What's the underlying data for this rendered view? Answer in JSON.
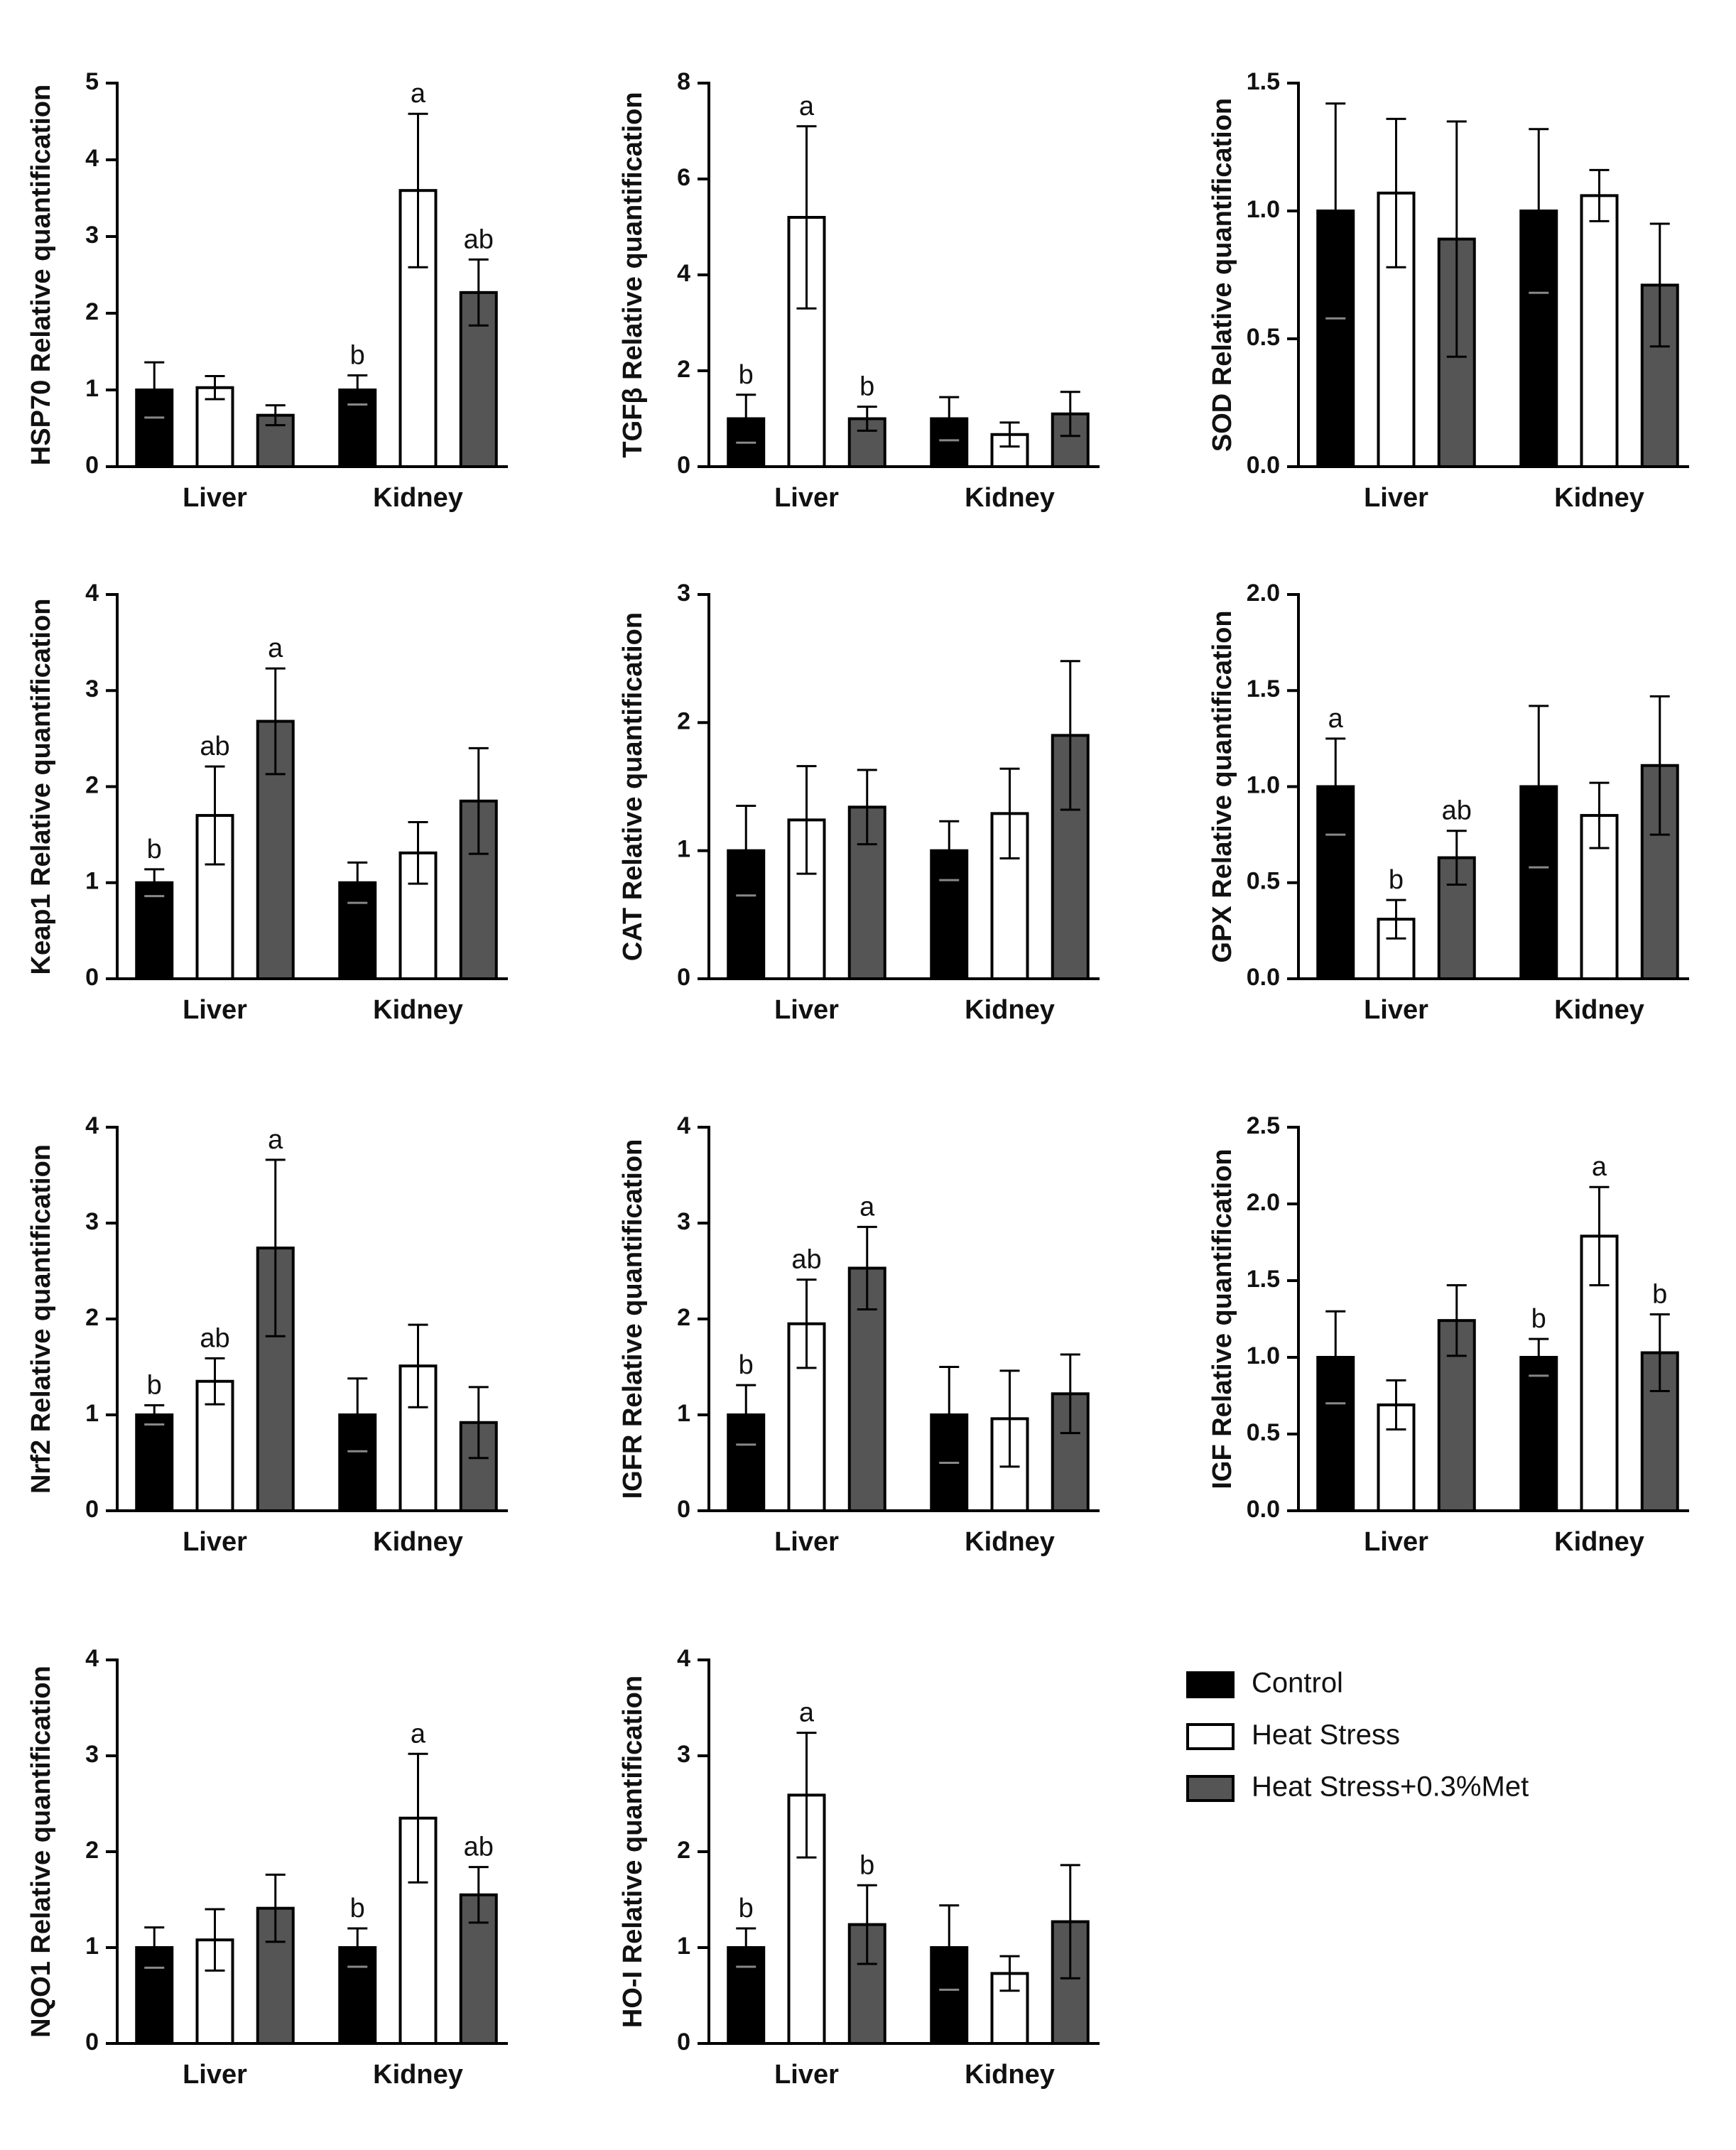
{
  "colors": {
    "control": "#000000",
    "heat_stress": "#ffffff",
    "heat_stress_met": "#555555",
    "axis": "#000000"
  },
  "legend": [
    {
      "label": "Control",
      "color": "#000000"
    },
    {
      "label": "Heat Stress",
      "color": "#ffffff"
    },
    {
      "label": "Heat Stress+0.3%Met",
      "color": "#555555"
    }
  ],
  "chart_data": [
    {
      "type": "bar",
      "ylabel": "HSP70 Relative quantification",
      "categories": [
        "Liver",
        "Kidney"
      ],
      "ylim": [
        0,
        5
      ],
      "yticks": [
        "0",
        "1",
        "2",
        "3",
        "4",
        "5"
      ],
      "series": [
        {
          "name": "Control",
          "values": [
            1.0,
            1.0
          ],
          "errors": [
            0.36,
            0.19
          ],
          "labels": [
            "",
            "b"
          ]
        },
        {
          "name": "Heat Stress",
          "values": [
            1.03,
            3.6
          ],
          "errors": [
            0.15,
            1.0
          ],
          "labels": [
            "",
            "a"
          ]
        },
        {
          "name": "Heat Stress+0.3%Met",
          "values": [
            0.67,
            2.27
          ],
          "errors": [
            0.13,
            0.43
          ],
          "labels": [
            "",
            "ab"
          ]
        }
      ]
    },
    {
      "type": "bar",
      "ylabel": "TGFβ Relative quantification",
      "categories": [
        "Liver",
        "Kidney"
      ],
      "ylim": [
        0,
        8
      ],
      "yticks": [
        "0",
        "2",
        "4",
        "6",
        "8"
      ],
      "series": [
        {
          "name": "Control",
          "values": [
            1.0,
            1.0
          ],
          "errors": [
            0.5,
            0.45
          ],
          "labels": [
            "b",
            ""
          ]
        },
        {
          "name": "Heat Stress",
          "values": [
            5.2,
            0.67
          ],
          "errors": [
            1.9,
            0.25
          ],
          "labels": [
            "a",
            ""
          ]
        },
        {
          "name": "Heat Stress+0.3%Met",
          "values": [
            1.0,
            1.1
          ],
          "errors": [
            0.25,
            0.46
          ],
          "labels": [
            "b",
            ""
          ]
        }
      ]
    },
    {
      "type": "bar",
      "ylabel": "SOD Relative quantification",
      "categories": [
        "Liver",
        "Kidney"
      ],
      "ylim": [
        0,
        1.5
      ],
      "yticks": [
        "0.0",
        "0.5",
        "1.0",
        "1.5"
      ],
      "series": [
        {
          "name": "Control",
          "values": [
            1.0,
            1.0
          ],
          "errors": [
            0.42,
            0.32
          ],
          "labels": [
            "",
            ""
          ]
        },
        {
          "name": "Heat Stress",
          "values": [
            1.07,
            1.06
          ],
          "errors": [
            0.29,
            0.1
          ],
          "labels": [
            "",
            ""
          ]
        },
        {
          "name": "Heat Stress+0.3%Met",
          "values": [
            0.89,
            0.71
          ],
          "errors": [
            0.46,
            0.24
          ],
          "labels": [
            "",
            ""
          ]
        }
      ]
    },
    {
      "type": "bar",
      "ylabel": "Keap1 Relative quantification",
      "categories": [
        "Liver",
        "Kidney"
      ],
      "ylim": [
        0,
        4
      ],
      "yticks": [
        "0",
        "1",
        "2",
        "3",
        "4"
      ],
      "series": [
        {
          "name": "Control",
          "values": [
            1.0,
            1.0
          ],
          "errors": [
            0.14,
            0.21
          ],
          "labels": [
            "b",
            ""
          ]
        },
        {
          "name": "Heat Stress",
          "values": [
            1.7,
            1.31
          ],
          "errors": [
            0.51,
            0.32
          ],
          "labels": [
            "ab",
            ""
          ]
        },
        {
          "name": "Heat Stress+0.3%Met",
          "values": [
            2.68,
            1.85
          ],
          "errors": [
            0.55,
            0.55
          ],
          "labels": [
            "a",
            ""
          ]
        }
      ]
    },
    {
      "type": "bar",
      "ylabel": "CAT Relative quantification",
      "categories": [
        "Liver",
        "Kidney"
      ],
      "ylim": [
        0,
        3
      ],
      "yticks": [
        "0",
        "1",
        "2",
        "3"
      ],
      "series": [
        {
          "name": "Control",
          "values": [
            1.0,
            1.0
          ],
          "errors": [
            0.35,
            0.23
          ],
          "labels": [
            "",
            ""
          ]
        },
        {
          "name": "Heat Stress",
          "values": [
            1.24,
            1.29
          ],
          "errors": [
            0.42,
            0.35
          ],
          "labels": [
            "",
            ""
          ]
        },
        {
          "name": "Heat Stress+0.3%Met",
          "values": [
            1.34,
            1.9
          ],
          "errors": [
            0.29,
            0.58
          ],
          "labels": [
            "",
            ""
          ]
        }
      ]
    },
    {
      "type": "bar",
      "ylabel": "GPX Relative quantification",
      "categories": [
        "Liver",
        "Kidney"
      ],
      "ylim": [
        0,
        2
      ],
      "yticks": [
        "0.0",
        "0.5",
        "1.0",
        "1.5",
        "2.0"
      ],
      "series": [
        {
          "name": "Control",
          "values": [
            1.0,
            1.0
          ],
          "errors": [
            0.25,
            0.42
          ],
          "labels": [
            "a",
            ""
          ]
        },
        {
          "name": "Heat Stress",
          "values": [
            0.31,
            0.85
          ],
          "errors": [
            0.1,
            0.17
          ],
          "labels": [
            "b",
            ""
          ]
        },
        {
          "name": "Heat Stress+0.3%Met",
          "values": [
            0.63,
            1.11
          ],
          "errors": [
            0.14,
            0.36
          ],
          "labels": [
            "ab",
            ""
          ]
        }
      ]
    },
    {
      "type": "bar",
      "ylabel": "Nrf2 Relative quantification",
      "categories": [
        "Liver",
        "Kidney"
      ],
      "ylim": [
        0,
        4
      ],
      "yticks": [
        "0",
        "1",
        "2",
        "3",
        "4"
      ],
      "series": [
        {
          "name": "Control",
          "values": [
            1.0,
            1.0
          ],
          "errors": [
            0.1,
            0.38
          ],
          "labels": [
            "b",
            ""
          ]
        },
        {
          "name": "Heat Stress",
          "values": [
            1.35,
            1.51
          ],
          "errors": [
            0.24,
            0.43
          ],
          "labels": [
            "ab",
            ""
          ]
        },
        {
          "name": "Heat Stress+0.3%Met",
          "values": [
            2.74,
            0.92
          ],
          "errors": [
            0.92,
            0.37
          ],
          "labels": [
            "a",
            ""
          ]
        }
      ]
    },
    {
      "type": "bar",
      "ylabel": "IGFR Relative quantification",
      "categories": [
        "Liver",
        "Kidney"
      ],
      "ylim": [
        0,
        4
      ],
      "yticks": [
        "0",
        "1",
        "2",
        "3",
        "4"
      ],
      "series": [
        {
          "name": "Control",
          "values": [
            1.0,
            1.0
          ],
          "errors": [
            0.31,
            0.5
          ],
          "labels": [
            "b",
            ""
          ]
        },
        {
          "name": "Heat Stress",
          "values": [
            1.95,
            0.96
          ],
          "errors": [
            0.46,
            0.5
          ],
          "labels": [
            "ab",
            ""
          ]
        },
        {
          "name": "Heat Stress+0.3%Met",
          "values": [
            2.53,
            1.22
          ],
          "errors": [
            0.43,
            0.41
          ],
          "labels": [
            "a",
            ""
          ]
        }
      ]
    },
    {
      "type": "bar",
      "ylabel": "IGF Relative quantification",
      "categories": [
        "Liver",
        "Kidney"
      ],
      "ylim": [
        0,
        2.5
      ],
      "yticks": [
        "0.0",
        "0.5",
        "1.0",
        "1.5",
        "2.0",
        "2.5"
      ],
      "series": [
        {
          "name": "Control",
          "values": [
            1.0,
            1.0
          ],
          "errors": [
            0.3,
            0.12
          ],
          "labels": [
            "",
            "b"
          ]
        },
        {
          "name": "Heat Stress",
          "values": [
            0.69,
            1.79
          ],
          "errors": [
            0.16,
            0.32
          ],
          "labels": [
            "",
            "a"
          ]
        },
        {
          "name": "Heat Stress+0.3%Met",
          "values": [
            1.24,
            1.03
          ],
          "errors": [
            0.23,
            0.25
          ],
          "labels": [
            "",
            "b"
          ]
        }
      ]
    },
    {
      "type": "bar",
      "ylabel": "NQO1 Relative quantification",
      "categories": [
        "Liver",
        "Kidney"
      ],
      "ylim": [
        0,
        4
      ],
      "yticks": [
        "0",
        "1",
        "2",
        "3",
        "4"
      ],
      "series": [
        {
          "name": "Control",
          "values": [
            1.0,
            1.0
          ],
          "errors": [
            0.21,
            0.2
          ],
          "labels": [
            "",
            "b"
          ]
        },
        {
          "name": "Heat Stress",
          "values": [
            1.08,
            2.35
          ],
          "errors": [
            0.32,
            0.67
          ],
          "labels": [
            "",
            "a"
          ]
        },
        {
          "name": "Heat Stress+0.3%Met",
          "values": [
            1.41,
            1.55
          ],
          "errors": [
            0.35,
            0.29
          ],
          "labels": [
            "",
            "ab"
          ]
        }
      ]
    },
    {
      "type": "bar",
      "ylabel": "HO-I Relative quantification",
      "categories": [
        "Liver",
        "Kidney"
      ],
      "ylim": [
        0,
        4
      ],
      "yticks": [
        "0",
        "1",
        "2",
        "3",
        "4"
      ],
      "series": [
        {
          "name": "Control",
          "values": [
            1.0,
            1.0
          ],
          "errors": [
            0.2,
            0.44
          ],
          "labels": [
            "b",
            ""
          ]
        },
        {
          "name": "Heat Stress",
          "values": [
            2.59,
            0.73
          ],
          "errors": [
            0.65,
            0.18
          ],
          "labels": [
            "a",
            ""
          ]
        },
        {
          "name": "Heat Stress+0.3%Met",
          "values": [
            1.24,
            1.27
          ],
          "errors": [
            0.41,
            0.59
          ],
          "labels": [
            "b",
            ""
          ]
        }
      ]
    }
  ]
}
